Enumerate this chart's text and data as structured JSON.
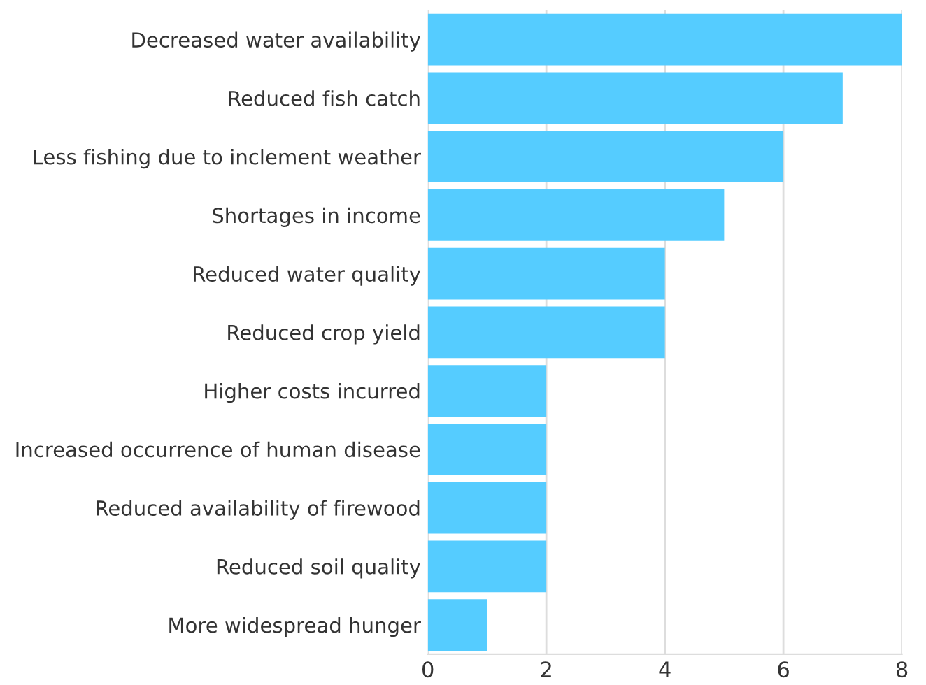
{
  "chart_data": {
    "type": "bar",
    "orientation": "horizontal",
    "categories": [
      "Decreased water availability",
      "Reduced fish catch",
      "Less fishing due to inclement weather",
      "Shortages in income",
      "Reduced water quality",
      "Reduced crop yield",
      "Higher costs incurred",
      "Increased occurrence of human disease",
      "Reduced availability of firewood",
      "Reduced soil quality",
      "More widespread hunger"
    ],
    "values": [
      8,
      7,
      6,
      5,
      4,
      4,
      2,
      2,
      2,
      2,
      1
    ],
    "color": "#55ccff",
    "xlim": [
      0,
      8
    ],
    "xticks": [
      0,
      2,
      4,
      6,
      8
    ],
    "grid": "x"
  }
}
